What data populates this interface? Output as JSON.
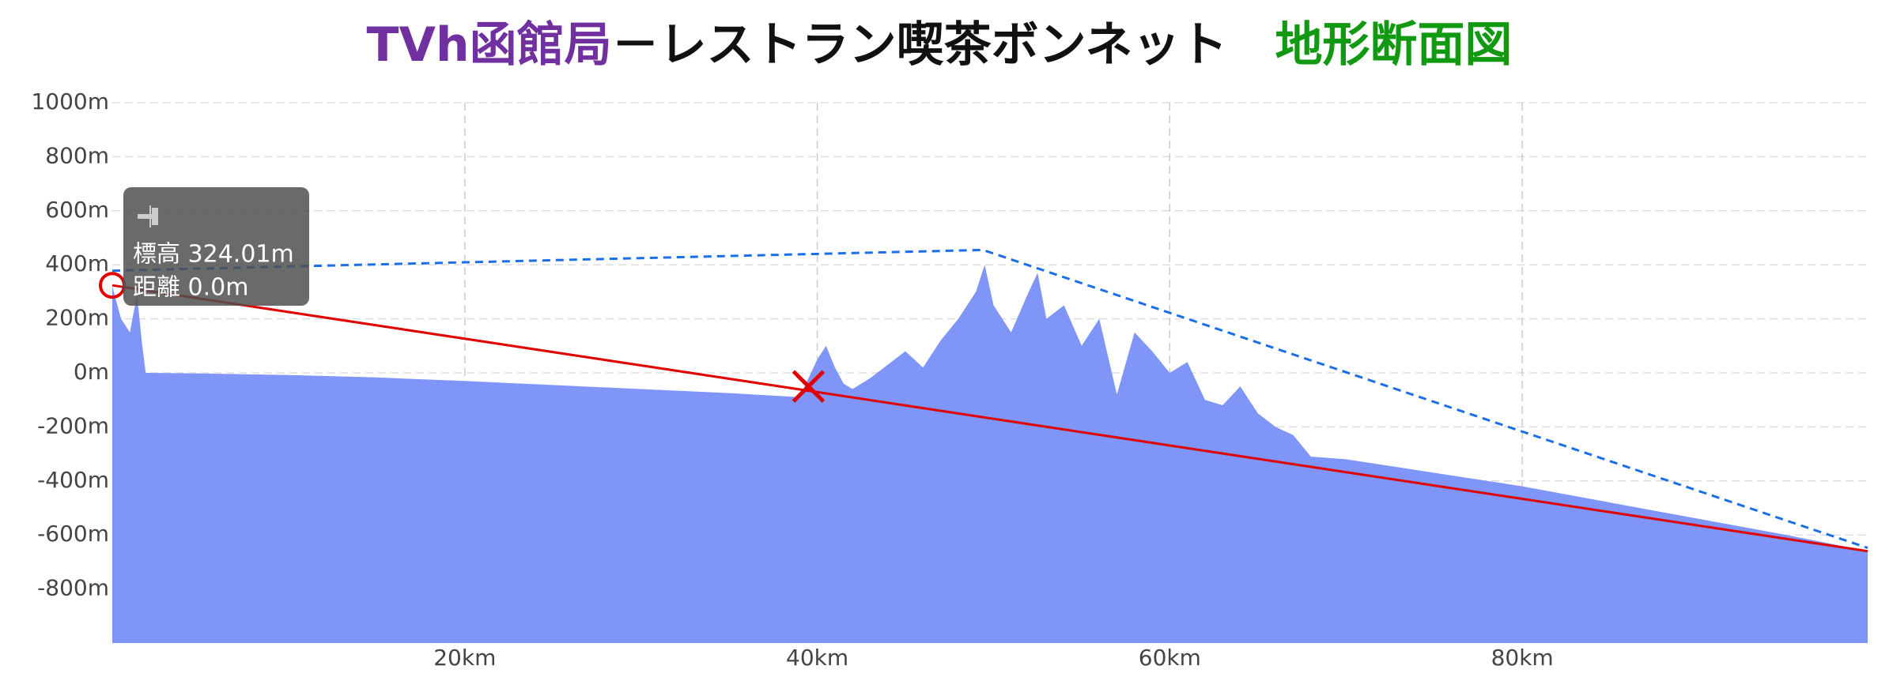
{
  "chart_data": {
    "type": "area",
    "title_parts": [
      {
        "text": "TVh函館局",
        "color": "#7030a0"
      },
      {
        "text": "－レストラン喫茶ボンネット",
        "color": "#111111"
      },
      {
        "text": "地形断面図",
        "color": "#119911"
      }
    ],
    "xlim": [
      0,
      99.6
    ],
    "ylim": [
      -1000,
      1000
    ],
    "xticks": [
      {
        "value": 20,
        "label": "20km"
      },
      {
        "value": 40,
        "label": "40km"
      },
      {
        "value": 60,
        "label": "60km"
      },
      {
        "value": 80,
        "label": "80km"
      }
    ],
    "yticks": [
      {
        "value": 1000,
        "label": "1000m"
      },
      {
        "value": 800,
        "label": "800m"
      },
      {
        "value": 600,
        "label": "600m"
      },
      {
        "value": 400,
        "label": "400m"
      },
      {
        "value": 200,
        "label": "200m"
      },
      {
        "value": 0,
        "label": "0m"
      },
      {
        "value": -200,
        "label": "-200m"
      },
      {
        "value": -400,
        "label": "-400m"
      },
      {
        "value": -600,
        "label": "-600m"
      },
      {
        "value": -800,
        "label": "-800m"
      }
    ],
    "grid": true,
    "series": [
      {
        "color": "#7f96f8",
        "fill": true,
        "dashed": false,
        "x": [
          0,
          0.5,
          1,
          1.4,
          1.7,
          1.9,
          5,
          10,
          15,
          20,
          25,
          30,
          35,
          39,
          40,
          40.5,
          41,
          41.5,
          42,
          43,
          44,
          45,
          46,
          47,
          48,
          49,
          49.5,
          50,
          51,
          52,
          52.5,
          53,
          54,
          55,
          56,
          57,
          58,
          59,
          60,
          61,
          62,
          63,
          64,
          65,
          66,
          67,
          68,
          70,
          75,
          80,
          85,
          90,
          95,
          99.6
        ],
        "values": [
          320,
          200,
          150,
          290,
          100,
          0,
          -2,
          -8,
          -17,
          -30,
          -45,
          -60,
          -75,
          -90,
          50,
          100,
          20,
          -40,
          -60,
          -20,
          30,
          80,
          20,
          120,
          200,
          300,
          400,
          250,
          150,
          300,
          370,
          200,
          250,
          100,
          200,
          -80,
          150,
          80,
          0,
          40,
          -100,
          -120,
          -50,
          -150,
          -200,
          -230,
          -310,
          -320,
          -370,
          -420,
          -480,
          -540,
          -600,
          -660
        ]
      },
      {
        "color": "#e00000",
        "fill": false,
        "dashed": false,
        "x": [
          0,
          99.6
        ],
        "values": [
          324.01,
          -660
        ]
      },
      {
        "color": "#1a6fe8",
        "fill": false,
        "dashed": true,
        "x": [
          0,
          49.4,
          99.6
        ],
        "values": [
          378,
          455,
          -648
        ]
      }
    ],
    "markers": [
      {
        "shape": "circle",
        "color": "#e00000",
        "x": 0,
        "y": 324.01
      },
      {
        "shape": "cross",
        "color": "#e00000",
        "x": 39.5,
        "y": -50
      }
    ],
    "tooltip": [
      "標高 324.01m",
      "距離 0.0m"
    ]
  }
}
